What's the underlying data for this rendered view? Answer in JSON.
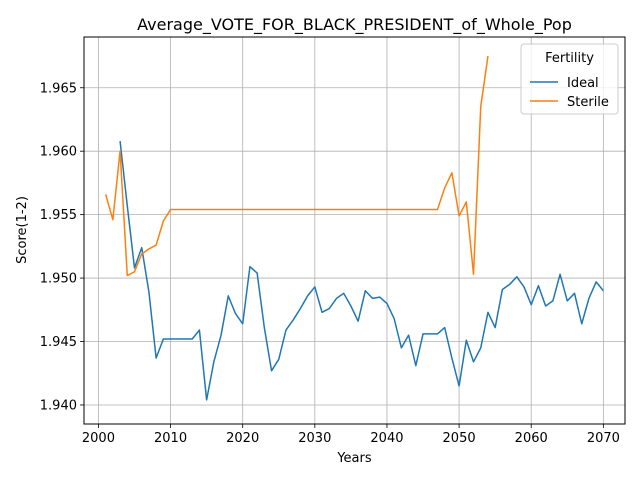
{
  "chart_data": {
    "type": "line",
    "title": "Average_VOTE_FOR_BLACK_PRESIDENT_of_Whole_Pop",
    "xlabel": "Years",
    "ylabel": "Score(1-2)",
    "xlim": [
      1998,
      2073
    ],
    "ylim": [
      1.9385,
      1.969
    ],
    "xticks": [
      2000,
      2010,
      2020,
      2030,
      2040,
      2050,
      2060,
      2070
    ],
    "yticks": [
      1.94,
      1.945,
      1.95,
      1.955,
      1.96,
      1.965
    ],
    "ytick_labels": [
      "1.940",
      "1.945",
      "1.950",
      "1.955",
      "1.960",
      "1.965"
    ],
    "grid": true,
    "legend": {
      "title": "Fertility",
      "position": "top-right"
    },
    "series": [
      {
        "name": "Ideal",
        "color": "#1f77b4",
        "x": [
          2003,
          2004,
          2005,
          2006,
          2007,
          2008,
          2009,
          2010,
          2011,
          2012,
          2013,
          2014,
          2015,
          2016,
          2017,
          2018,
          2019,
          2020,
          2021,
          2022,
          2023,
          2024,
          2025,
          2026,
          2027,
          2028,
          2029,
          2030,
          2031,
          2032,
          2033,
          2034,
          2035,
          2036,
          2037,
          2038,
          2039,
          2040,
          2041,
          2042,
          2043,
          2044,
          2045,
          2046,
          2047,
          2048,
          2049,
          2050,
          2051,
          2052,
          2053,
          2054,
          2055,
          2056,
          2057,
          2058,
          2059,
          2060,
          2061,
          2062,
          2063,
          2064,
          2065,
          2066,
          2067,
          2068,
          2069,
          2070
        ],
        "y": [
          1.9608,
          1.9557,
          1.9508,
          1.9524,
          1.9489,
          1.9437,
          1.9452,
          1.9452,
          1.9452,
          1.9452,
          1.9452,
          1.9459,
          1.9404,
          1.9434,
          1.9455,
          1.9486,
          1.9472,
          1.9464,
          1.9509,
          1.9504,
          1.9461,
          1.9427,
          1.9436,
          1.9459,
          1.9467,
          1.9476,
          1.9486,
          1.9493,
          1.9473,
          1.9476,
          1.9484,
          1.9488,
          1.9478,
          1.9466,
          1.949,
          1.9484,
          1.9485,
          1.948,
          1.9468,
          1.9445,
          1.9455,
          1.9431,
          1.9456,
          1.9456,
          1.9456,
          1.9461,
          1.9437,
          1.9415,
          1.9451,
          1.9434,
          1.9445,
          1.9473,
          1.9461,
          1.9491,
          1.9495,
          1.9501,
          1.9493,
          1.9479,
          1.9494,
          1.9478,
          1.9482,
          1.9503,
          1.9482,
          1.9488,
          1.9464,
          1.9484,
          1.9497,
          1.949
        ]
      },
      {
        "name": "Sterile",
        "color": "#ff7f0e",
        "x": [
          2001,
          2002,
          2003,
          2004,
          2005,
          2006,
          2007,
          2008,
          2009,
          2010,
          2011,
          2012,
          2013,
          2014,
          2015,
          2016,
          2017,
          2018,
          2019,
          2020,
          2021,
          2022,
          2023,
          2024,
          2025,
          2026,
          2027,
          2028,
          2029,
          2030,
          2031,
          2032,
          2033,
          2034,
          2035,
          2036,
          2037,
          2038,
          2039,
          2040,
          2041,
          2042,
          2043,
          2044,
          2045,
          2046,
          2047,
          2048,
          2049,
          2050,
          2051,
          2052,
          2053,
          2054
        ],
        "y": [
          1.9566,
          1.9546,
          1.96,
          1.9502,
          1.9505,
          1.9519,
          1.9523,
          1.9526,
          1.9545,
          1.9554,
          1.9554,
          1.9554,
          1.9554,
          1.9554,
          1.9554,
          1.9554,
          1.9554,
          1.9554,
          1.9554,
          1.9554,
          1.9554,
          1.9554,
          1.9554,
          1.9554,
          1.9554,
          1.9554,
          1.9554,
          1.9554,
          1.9554,
          1.9554,
          1.9554,
          1.9554,
          1.9554,
          1.9554,
          1.9554,
          1.9554,
          1.9554,
          1.9554,
          1.9554,
          1.9554,
          1.9554,
          1.9554,
          1.9554,
          1.9554,
          1.9554,
          1.9554,
          1.9554,
          1.9571,
          1.9583,
          1.9549,
          1.956,
          1.9503,
          1.9635,
          1.9675
        ]
      }
    ]
  }
}
